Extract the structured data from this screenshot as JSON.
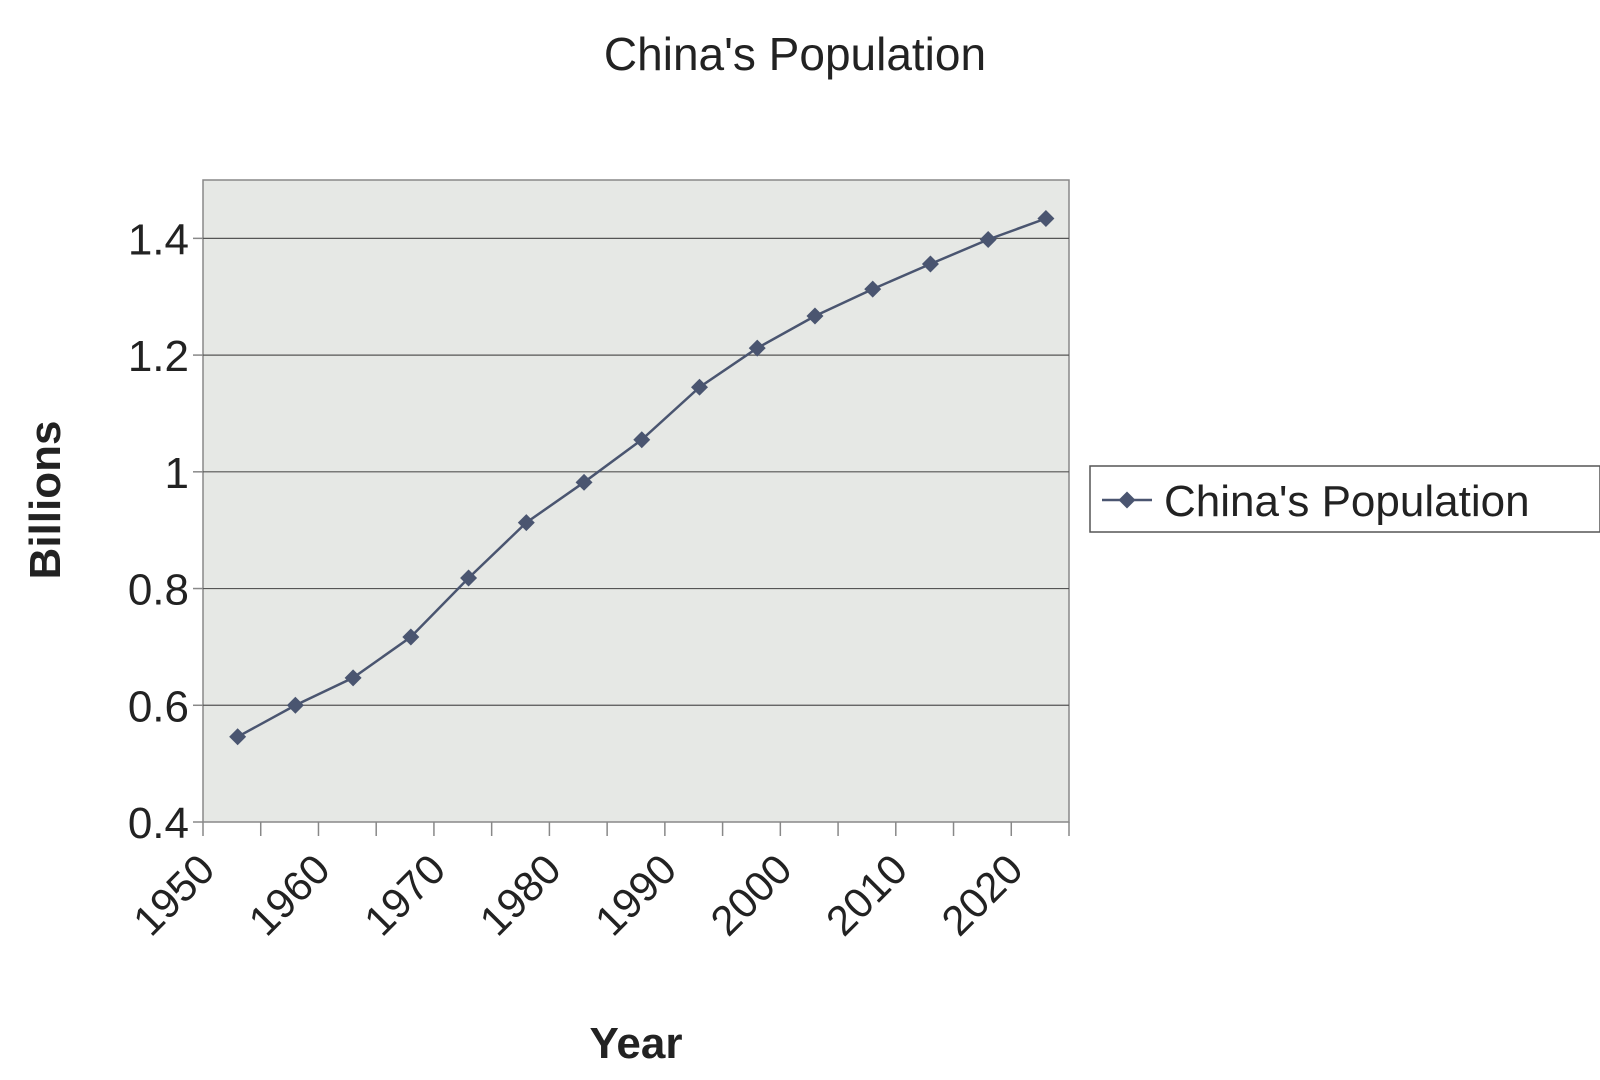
{
  "chart_data": {
    "type": "line",
    "title": "China's Population",
    "xlabel": "Year",
    "ylabel": "Billions",
    "x_ticks": [
      "1950",
      "1960",
      "1970",
      "1980",
      "1990",
      "2000",
      "2010",
      "2020"
    ],
    "y_ticks": [
      "0.4",
      "0.6",
      "0.8",
      "1",
      "1.2",
      "1.4"
    ],
    "xlim": [
      1950,
      2025
    ],
    "ylim": [
      0.4,
      1.5
    ],
    "grid": true,
    "legend_position": "right",
    "series": [
      {
        "name": "China's Population",
        "color": "#4a5570",
        "x": [
          1953,
          1958,
          1963,
          1968,
          1973,
          1978,
          1983,
          1988,
          1993,
          1998,
          2003,
          2008,
          2013,
          2018,
          2023
        ],
        "values": [
          0.546,
          0.6,
          0.647,
          0.717,
          0.818,
          0.913,
          0.982,
          1.055,
          1.145,
          1.212,
          1.267,
          1.313,
          1.356,
          1.398,
          1.434
        ]
      }
    ]
  },
  "colors": {
    "plot_background": "#e6e8e5",
    "gridline": "#555555",
    "axis": "#888888"
  }
}
